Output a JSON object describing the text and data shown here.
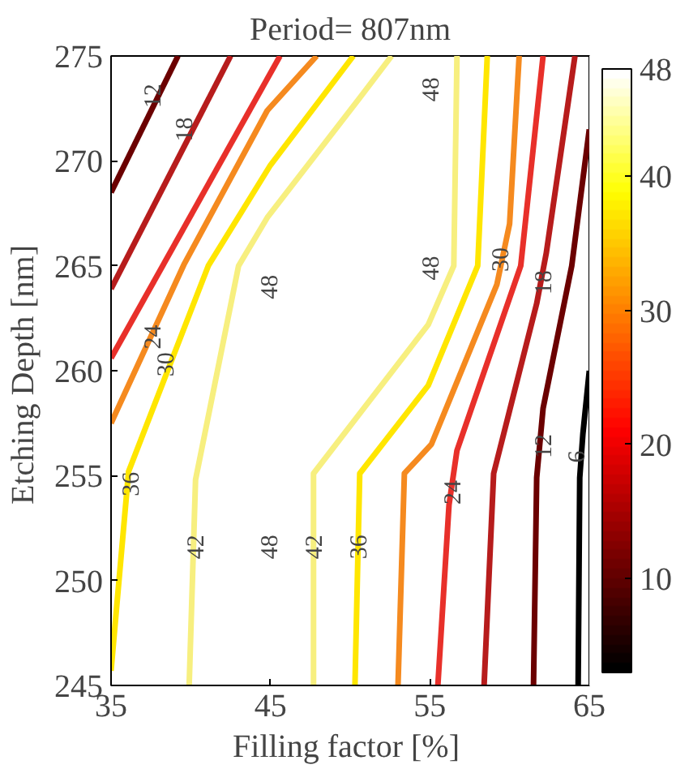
{
  "chart_data": {
    "type": "line",
    "title": "Period= 807nm",
    "xlabel": "Filling factor  [%]",
    "ylabel": "Etching Depth  [nm]",
    "xlim": [
      35,
      65
    ],
    "xticks": [
      35,
      45,
      55,
      65
    ],
    "ylim": [
      245,
      275
    ],
    "yticks": [
      245,
      250,
      255,
      260,
      265,
      270,
      275
    ],
    "grid": false,
    "marker": "none",
    "line_style": "solid",
    "clim": [
      3,
      48
    ],
    "cticks": [
      10,
      20,
      30,
      40,
      48
    ],
    "series": [
      {
        "color": "#6b0000",
        "x": [
          35,
          39.2
        ],
        "values": [
          268.5,
          275
        ]
      },
      {
        "color": "#b71c1c",
        "x": [
          35,
          42.5
        ],
        "values": [
          263.9,
          275
        ]
      },
      {
        "color": "#e8302a",
        "x": [
          35,
          45.6
        ],
        "values": [
          260.6,
          275
        ]
      },
      {
        "color": "#f58a1f",
        "x": [
          35,
          39.6,
          44.8,
          47.9
        ],
        "values": [
          257.5,
          265.1,
          272.4,
          275
        ]
      },
      {
        "color": "#ffe600",
        "x": [
          35,
          36.1,
          41.1,
          45.0,
          50.2
        ],
        "values": [
          245.7,
          255.2,
          265.0,
          269.8,
          275
        ]
      },
      {
        "color": "#f7ef7f",
        "x": [
          39.9,
          40.3,
          43.0,
          44.8,
          50.6,
          52.6
        ],
        "values": [
          245,
          254.8,
          265.0,
          267.3,
          273.0,
          275
        ]
      },
      {
        "color": "#f7ef7f",
        "x": [
          47.7,
          47.7,
          54.9,
          56.5,
          56.7
        ],
        "values": [
          245,
          255.1,
          262.2,
          265.0,
          275
        ]
      },
      {
        "color": "#ffe600",
        "x": [
          50.3,
          50.6,
          54.9,
          58.0,
          58.6
        ],
        "values": [
          245,
          255.1,
          259.3,
          265.0,
          275
        ]
      },
      {
        "color": "#f58a1f",
        "x": [
          53.0,
          53.4,
          55.1,
          59.2,
          60.0,
          60.6
        ],
        "values": [
          245,
          255.1,
          256.5,
          264.1,
          267.0,
          275
        ]
      },
      {
        "color": "#e8302a",
        "x": [
          55.5,
          56.2,
          56.7,
          60.7,
          62.1
        ],
        "values": [
          245,
          253.6,
          256.2,
          265.0,
          275
        ]
      },
      {
        "color": "#b71c1c",
        "x": [
          58.4,
          59.0,
          61.7,
          62.3,
          64.1
        ],
        "values": [
          245,
          255.1,
          263.2,
          265.6,
          275
        ]
      },
      {
        "color": "#6b0000",
        "x": [
          61.5,
          61.7,
          62.1,
          63.9,
          65
        ],
        "values": [
          245,
          254.9,
          258.2,
          265.0,
          271.5
        ]
      },
      {
        "color": "#000000",
        "x": [
          64.3,
          64.4,
          64.6,
          65
        ],
        "values": [
          245,
          254.9,
          257.0,
          260.0
        ]
      }
    ],
    "annotations": [
      {
        "text": "12",
        "x": 37.6,
        "y": 273.1
      },
      {
        "text": "18",
        "x": 39.6,
        "y": 271.5
      },
      {
        "text": "24",
        "x": 37.6,
        "y": 261.6
      },
      {
        "text": "30",
        "x": 38.4,
        "y": 260.3
      },
      {
        "text": "36",
        "x": 36.2,
        "y": 254.6
      },
      {
        "text": "42",
        "x": 40.3,
        "y": 251.6
      },
      "48",
      "48",
      {
        "text": "42",
        "x": 47.7,
        "y": 251.6
      },
      {
        "text": "36",
        "x": 50.5,
        "y": 251.6
      },
      "48",
      "48",
      {
        "text": "30",
        "x": 59.4,
        "y": 265.3
      },
      {
        "text": "18",
        "x": 62.1,
        "y": 264.2
      },
      {
        "text": "24",
        "x": 56.4,
        "y": 254.2
      },
      {
        "text": "12",
        "x": 62.1,
        "y": 256.4
      },
      {
        "text": "6",
        "x": 64.2,
        "y": 255.9
      }
    ]
  }
}
